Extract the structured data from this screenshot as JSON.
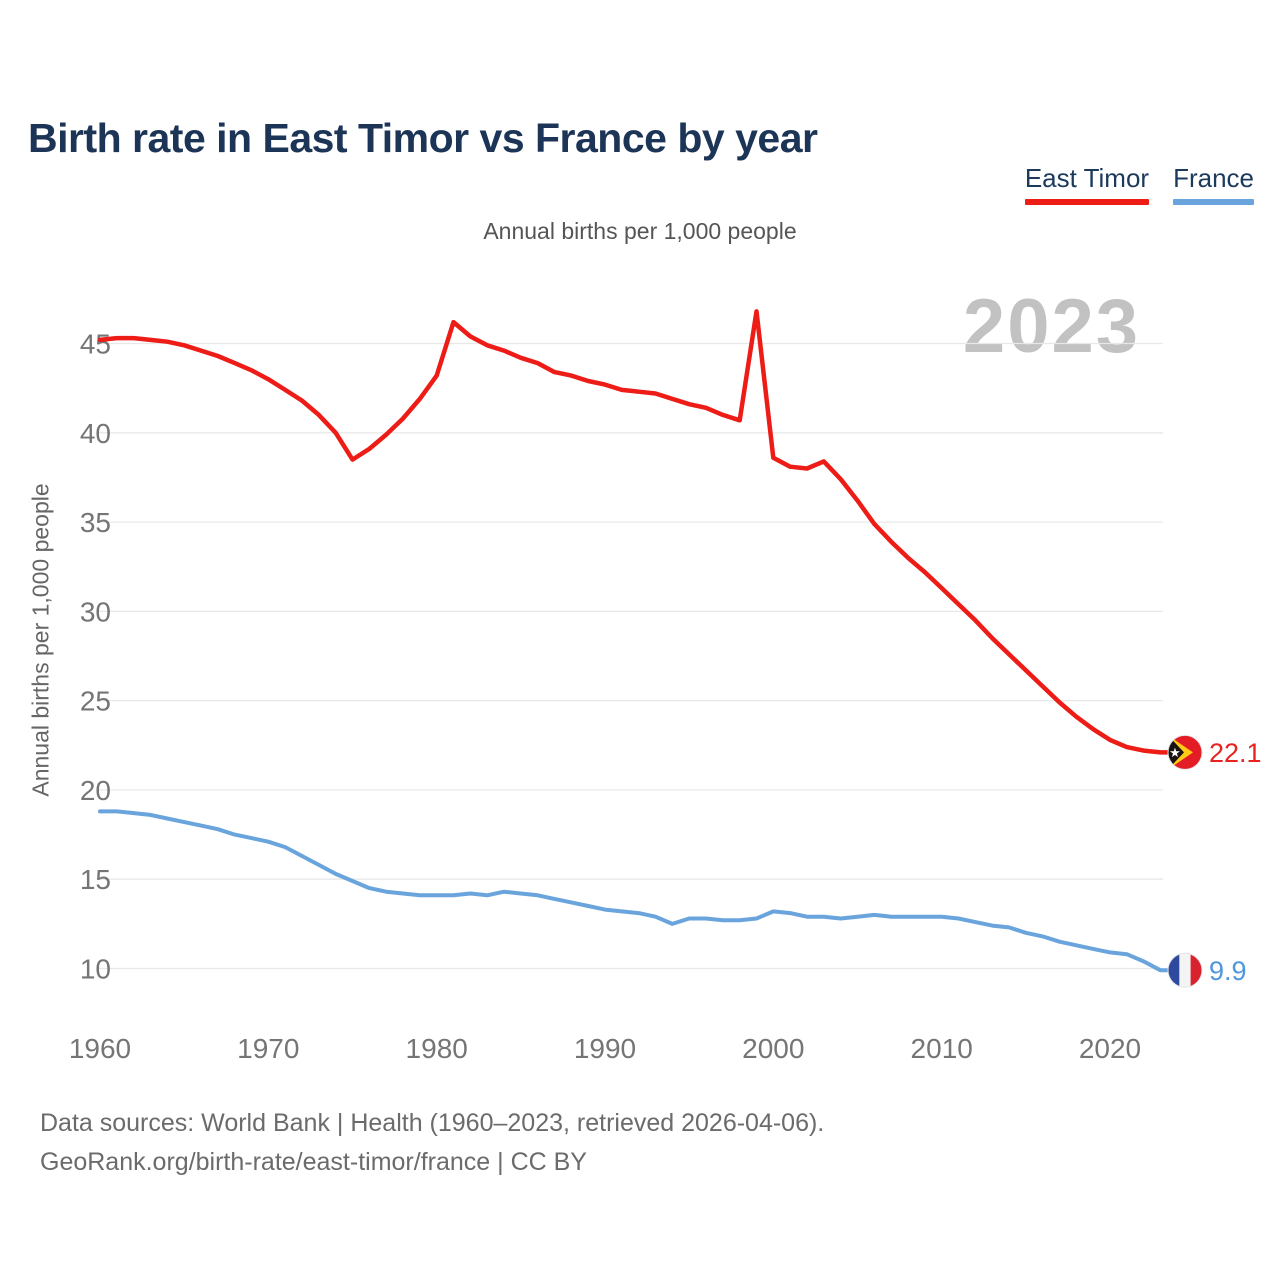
{
  "header": {
    "title": "Birth rate in East Timor vs France by year"
  },
  "legend": [
    {
      "label": "East Timor",
      "color": "#ed1c16"
    },
    {
      "label": "France",
      "color": "#69a4dc"
    }
  ],
  "subtitle": "Annual births per 1,000 people",
  "watermark": "2023",
  "y_axis_label": "Annual births per 1,000 people",
  "footer": {
    "line1": "Data sources: World Bank | Health (1960–2023, retrieved 2026-04-06).",
    "line2": "GeoRank.org/birth-rate/east-timor/france | CC BY"
  },
  "chart_data": {
    "type": "line",
    "title": "Birth rate in East Timor vs France by year",
    "ylabel": "Annual births per 1,000 people",
    "legend_position": "top-right",
    "grid": "horizontal",
    "xlim": [
      1960,
      2023
    ],
    "ylim": [
      8,
      47.5
    ],
    "x_ticks": [
      1960,
      1970,
      1980,
      1990,
      2000,
      2010,
      2020
    ],
    "y_ticks": [
      10,
      15,
      20,
      25,
      30,
      35,
      40,
      45
    ],
    "x": [
      1960,
      1961,
      1962,
      1963,
      1964,
      1965,
      1966,
      1967,
      1968,
      1969,
      1970,
      1971,
      1972,
      1973,
      1974,
      1975,
      1976,
      1977,
      1978,
      1979,
      1980,
      1981,
      1982,
      1983,
      1984,
      1985,
      1986,
      1987,
      1988,
      1989,
      1990,
      1991,
      1992,
      1993,
      1994,
      1995,
      1996,
      1997,
      1998,
      1999,
      2000,
      2001,
      2002,
      2003,
      2004,
      2005,
      2006,
      2007,
      2008,
      2009,
      2010,
      2011,
      2012,
      2013,
      2014,
      2015,
      2016,
      2017,
      2018,
      2019,
      2020,
      2021,
      2022,
      2023
    ],
    "series": [
      {
        "id": "east-timor",
        "name": "East Timor",
        "color": "#ed1c16",
        "label_color": "#e8231f",
        "stroke_width": 4.5,
        "end_label": "22.1",
        "end_value": 22.1,
        "flag_icon": "east-timor-flag-icon",
        "flag_colors": {
          "red": "#e31c25",
          "yellow": "#ffca18",
          "black": "#1a1410",
          "star": "#ffffff"
        },
        "values": [
          45.2,
          45.3,
          45.3,
          45.2,
          45.1,
          44.9,
          44.6,
          44.3,
          43.9,
          43.5,
          43.0,
          42.4,
          41.8,
          41.0,
          40.0,
          38.5,
          39.1,
          39.9,
          40.8,
          41.9,
          43.2,
          46.2,
          45.4,
          44.9,
          44.6,
          44.2,
          43.9,
          43.4,
          43.2,
          42.9,
          42.7,
          42.4,
          42.3,
          42.2,
          41.9,
          41.6,
          41.4,
          41.0,
          40.7,
          46.8,
          38.6,
          38.1,
          38.0,
          38.4,
          37.4,
          36.2,
          34.9,
          33.9,
          33.0,
          32.2,
          31.3,
          30.4,
          29.5,
          28.5,
          27.6,
          26.7,
          25.8,
          24.9,
          24.1,
          23.4,
          22.8,
          22.4,
          22.2,
          22.1
        ]
      },
      {
        "id": "france",
        "name": "France",
        "color": "#69a4dc",
        "label_color": "#4f97dd",
        "stroke_width": 4,
        "end_label": "9.9",
        "end_value": 9.9,
        "flag_icon": "france-flag-icon",
        "flag_colors": {
          "blue": "#2d4a9e",
          "white": "#f4f4f4",
          "red": "#d8232f"
        },
        "values": [
          18.8,
          18.8,
          18.7,
          18.6,
          18.4,
          18.2,
          18.0,
          17.8,
          17.5,
          17.3,
          17.1,
          16.8,
          16.3,
          15.8,
          15.3,
          14.9,
          14.5,
          14.3,
          14.2,
          14.1,
          14.1,
          14.1,
          14.2,
          14.1,
          14.3,
          14.2,
          14.1,
          13.9,
          13.7,
          13.5,
          13.3,
          13.2,
          13.1,
          12.9,
          12.5,
          12.8,
          12.8,
          12.7,
          12.7,
          12.8,
          13.2,
          13.1,
          12.9,
          12.9,
          12.8,
          12.9,
          13.0,
          12.9,
          12.9,
          12.9,
          12.9,
          12.8,
          12.6,
          12.4,
          12.3,
          12.0,
          11.8,
          11.5,
          11.3,
          11.1,
          10.9,
          10.8,
          10.4,
          9.9
        ]
      }
    ]
  }
}
